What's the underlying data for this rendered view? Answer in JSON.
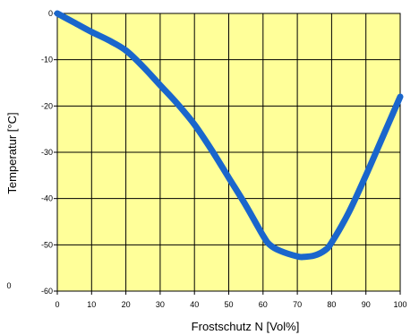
{
  "chart_data": {
    "type": "line",
    "xlabel": "Frostschutz N [Vol%]",
    "ylabel": "Temperatur [°C]",
    "xlim": [
      0,
      100
    ],
    "ylim": [
      -60,
      0
    ],
    "xticks": [
      0,
      10,
      20,
      30,
      40,
      50,
      60,
      70,
      80,
      90,
      100
    ],
    "yticks": [
      0,
      -10,
      -20,
      -30,
      -40,
      -50,
      -60
    ],
    "xtick_labels": [
      "0",
      "10",
      "20",
      "30",
      "40",
      "50",
      "60",
      "70",
      "80",
      "90",
      "100"
    ],
    "ytick_labels": [
      "0",
      "-10",
      "-20",
      "-30",
      "-40",
      "-50",
      "-60"
    ],
    "stray_label": "0",
    "grid": true,
    "background_color": "#ffff99",
    "line_color": "#1a66cc",
    "series": [
      {
        "x": [
          0,
          5,
          10,
          15,
          20,
          25,
          30,
          35,
          40,
          45,
          50,
          55,
          60,
          62,
          65,
          70,
          72,
          75,
          78,
          80,
          85,
          90,
          95,
          100
        ],
        "y": [
          0,
          -2,
          -4,
          -5.8,
          -8,
          -11.5,
          -15.5,
          -19.5,
          -24,
          -29.5,
          -35.5,
          -41.5,
          -48,
          -50,
          -51.3,
          -52.5,
          -52.6,
          -52.3,
          -51.2,
          -49.5,
          -43,
          -35,
          -26.5,
          -18
        ]
      }
    ]
  }
}
